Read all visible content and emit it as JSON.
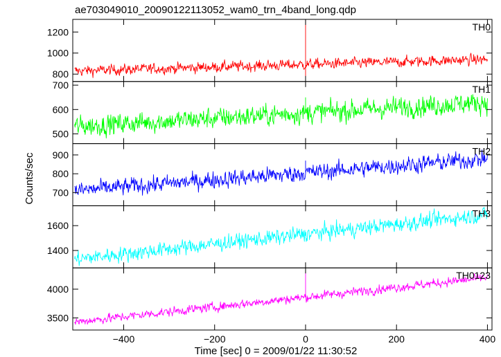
{
  "chart_data": {
    "type": "line",
    "title": "ae703049010_20090122113052_wam0_trn_4band_long.qdp",
    "xlabel": "Time [sec] 0 = 2009/01/22 11:30:52",
    "ylabel": "Counts/sec",
    "xlim": [
      -512,
      410
    ],
    "x_ticks": [
      -400,
      -200,
      0,
      200,
      400
    ],
    "x_tick_labels": [
      "−400",
      "−200",
      "0",
      "200",
      "400"
    ],
    "grid": false,
    "panels": [
      {
        "name": "TH0",
        "color": "#ff0000",
        "ylim": [
          730,
          1320
        ],
        "y_ticks": [
          800,
          1000,
          1200
        ],
        "y_tick_labels": [
          "800",
          "1000",
          "1200"
        ],
        "series": {
          "x_start": -508,
          "x_end": 400,
          "level_start": 830,
          "level_end": 940,
          "noise_amplitude": 45,
          "spikes": [
            {
              "x": 0,
              "value": 1320
            },
            {
              "x": 0,
              "value": 780
            }
          ]
        }
      },
      {
        "name": "TH1",
        "color": "#00ff00",
        "ylim": [
          460,
          715
        ],
        "y_ticks": [
          500,
          600,
          700
        ],
        "y_tick_labels": [
          "500",
          "600",
          "700"
        ],
        "series": {
          "x_start": -508,
          "x_end": 400,
          "level_start": 530,
          "level_end": 630,
          "noise_amplitude": 38,
          "spikes": [
            {
              "x": 0,
              "value": 650
            }
          ]
        }
      },
      {
        "name": "TH2",
        "color": "#0000ff",
        "ylim": [
          630,
          960
        ],
        "y_ticks": [
          700,
          800,
          900
        ],
        "y_tick_labels": [
          "700",
          "800",
          "900"
        ],
        "series": {
          "x_start": -508,
          "x_end": 400,
          "level_start": 710,
          "level_end": 880,
          "noise_amplitude": 40,
          "spikes": [
            {
              "x": 0,
              "value": 870
            }
          ]
        }
      },
      {
        "name": "TH3",
        "color": "#00ffff",
        "ylim": [
          1260,
          1760
        ],
        "y_ticks": [
          1400,
          1600
        ],
        "y_tick_labels": [
          "1400",
          "1600"
        ],
        "series": {
          "x_start": -508,
          "x_end": 400,
          "level_start": 1330,
          "level_end": 1690,
          "noise_amplitude": 55,
          "spikes": []
        }
      },
      {
        "name": "TH0123",
        "color": "#ff00ff",
        "ylim": [
          3290,
          4370
        ],
        "y_ticks": [
          3500,
          4000
        ],
        "y_tick_labels": [
          "3500",
          "4000"
        ],
        "series": {
          "x_start": -508,
          "x_end": 400,
          "level_start": 3430,
          "level_end": 4200,
          "noise_amplitude": 70,
          "spikes": [
            {
              "x": 0,
              "value": 4300
            }
          ]
        }
      }
    ]
  }
}
